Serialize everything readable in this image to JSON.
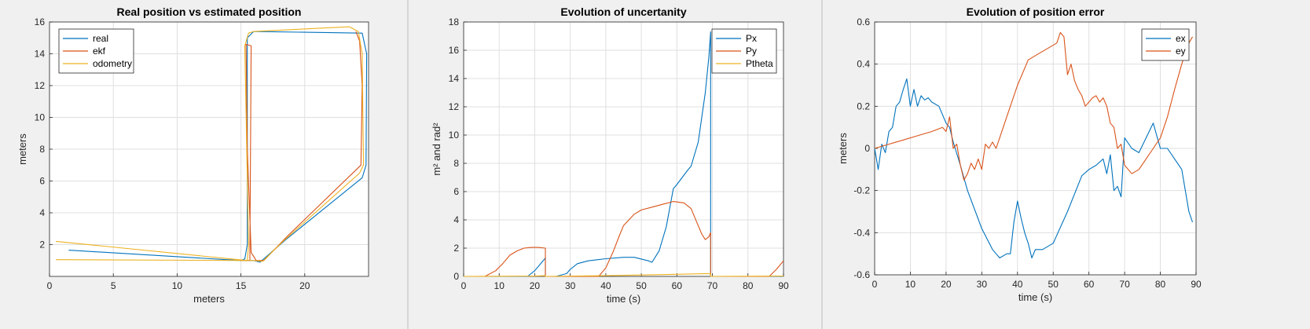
{
  "chart_data": [
    {
      "type": "line",
      "title": "Real position vs estimated position",
      "xlabel": "meters",
      "ylabel": "meters",
      "xlim": [
        0,
        25
      ],
      "ylim": [
        0,
        16
      ],
      "xticks": [
        0,
        5,
        10,
        15,
        20
      ],
      "yticks": [
        2,
        4,
        6,
        8,
        10,
        12,
        14,
        16
      ],
      "grid": true,
      "legend_position": "top-left",
      "series": [
        {
          "name": "real",
          "color": "#0072BD",
          "points": [
            [
              1.5,
              1.65
            ],
            [
              15.0,
              1.0
            ],
            [
              16.0,
              1.0
            ],
            [
              16.5,
              0.9
            ],
            [
              18.5,
              2.3
            ],
            [
              24.5,
              6.2
            ],
            [
              24.8,
              7.0
            ],
            [
              24.85,
              14.0
            ],
            [
              24.5,
              15.3
            ],
            [
              16.0,
              15.4
            ],
            [
              15.5,
              15.0
            ],
            [
              15.5,
              2.0
            ],
            [
              15.3,
              1.1
            ],
            [
              15.0,
              1.0
            ]
          ]
        },
        {
          "name": "ekf",
          "color": "#D95319",
          "points": [
            [
              15.0,
              1.0
            ],
            [
              15.7,
              1.0
            ],
            [
              15.7,
              1.6
            ],
            [
              15.8,
              14.5
            ],
            [
              15.4,
              14.6
            ],
            [
              15.5,
              8.0
            ],
            [
              15.8,
              1.5
            ],
            [
              16.2,
              1.0
            ],
            [
              16.8,
              1.0
            ],
            [
              18.6,
              2.5
            ],
            [
              24.4,
              7.0
            ],
            [
              24.5,
              12.0
            ],
            [
              24.3,
              14.8
            ],
            [
              24.0,
              15.4
            ]
          ]
        },
        {
          "name": "odometry",
          "color": "#EDB120",
          "points": [
            [
              0.5,
              2.2
            ],
            [
              14.8,
              1.05
            ],
            [
              15.5,
              1.0
            ],
            [
              15.6,
              2.0
            ],
            [
              15.3,
              14.5
            ],
            [
              15.6,
              15.3
            ],
            [
              16.0,
              15.4
            ],
            [
              23.5,
              15.7
            ],
            [
              24.2,
              15.4
            ],
            [
              24.5,
              14.0
            ],
            [
              24.6,
              7.0
            ],
            [
              24.3,
              6.5
            ],
            [
              18.3,
              2.2
            ],
            [
              16.7,
              0.95
            ],
            [
              16.0,
              1.0
            ],
            [
              0.5,
              1.05
            ]
          ]
        }
      ]
    },
    {
      "type": "line",
      "title": "Evolution of uncertanity",
      "xlabel": "time (s)",
      "ylabel": "m² and rad²",
      "xlim": [
        0,
        90
      ],
      "ylim": [
        0,
        18
      ],
      "xticks": [
        0,
        10,
        20,
        30,
        40,
        50,
        60,
        70,
        80,
        90
      ],
      "yticks": [
        0,
        2,
        4,
        6,
        8,
        10,
        12,
        14,
        16,
        18
      ],
      "grid": true,
      "legend_position": "top-right",
      "series": [
        {
          "name": "Px",
          "color": "#0072BD",
          "points": [
            [
              0,
              0
            ],
            [
              18,
              0
            ],
            [
              20,
              0.4
            ],
            [
              22,
              1.0
            ],
            [
              23,
              1.3
            ],
            [
              23,
              0
            ],
            [
              26,
              0
            ],
            [
              29,
              0.2
            ],
            [
              30,
              0.5
            ],
            [
              32,
              0.9
            ],
            [
              35,
              1.1
            ],
            [
              40,
              1.25
            ],
            [
              45,
              1.35
            ],
            [
              48,
              1.35
            ],
            [
              52,
              1.1
            ],
            [
              53,
              1.0
            ],
            [
              55,
              1.8
            ],
            [
              57,
              3.5
            ],
            [
              59,
              6.2
            ],
            [
              60,
              6.5
            ],
            [
              63,
              7.5
            ],
            [
              64,
              7.8
            ],
            [
              66,
              9.5
            ],
            [
              68,
              13
            ],
            [
              69,
              15.5
            ],
            [
              69.5,
              17.3
            ],
            [
              69.5,
              0
            ],
            [
              90,
              0
            ]
          ]
        },
        {
          "name": "Py",
          "color": "#D95319",
          "points": [
            [
              0,
              0
            ],
            [
              6,
              0
            ],
            [
              9,
              0.4
            ],
            [
              11,
              0.9
            ],
            [
              13,
              1.5
            ],
            [
              15,
              1.8
            ],
            [
              17,
              2.0
            ],
            [
              19,
              2.05
            ],
            [
              21,
              2.05
            ],
            [
              23,
              2.0
            ],
            [
              23,
              0
            ],
            [
              38,
              0
            ],
            [
              40,
              0.6
            ],
            [
              42,
              1.7
            ],
            [
              44,
              3.0
            ],
            [
              45,
              3.6
            ],
            [
              48,
              4.4
            ],
            [
              50,
              4.7
            ],
            [
              53,
              4.9
            ],
            [
              56,
              5.1
            ],
            [
              59,
              5.3
            ],
            [
              62,
              5.2
            ],
            [
              64,
              4.8
            ],
            [
              65,
              4.2
            ],
            [
              67,
              3.0
            ],
            [
              68,
              2.6
            ],
            [
              69,
              2.8
            ],
            [
              69.5,
              3.1
            ],
            [
              69.5,
              0
            ],
            [
              86,
              0
            ],
            [
              88,
              0.5
            ],
            [
              90,
              1.1
            ]
          ]
        },
        {
          "name": "Ptheta",
          "color": "#EDB120",
          "points": [
            [
              0,
              0
            ],
            [
              20,
              0.02
            ],
            [
              23,
              0.05
            ],
            [
              23,
              0
            ],
            [
              40,
              0.05
            ],
            [
              60,
              0.15
            ],
            [
              69.5,
              0.2
            ],
            [
              69.5,
              0
            ],
            [
              90,
              0.02
            ]
          ]
        }
      ]
    },
    {
      "type": "line",
      "title": "Evolution of position error",
      "xlabel": "time (s)",
      "ylabel": "meters",
      "xlim": [
        0,
        90
      ],
      "ylim": [
        -0.6,
        0.6
      ],
      "xticks": [
        0,
        10,
        20,
        30,
        40,
        50,
        60,
        70,
        80,
        90
      ],
      "yticks": [
        -0.6,
        -0.4,
        -0.2,
        0,
        0.2,
        0.4,
        0.6
      ],
      "ytick_labels": [
        "-0.6",
        "-0.4",
        "-0.2",
        "0",
        "0.2",
        "0.4",
        "0.6"
      ],
      "grid": true,
      "legend_position": "top-right",
      "series": [
        {
          "name": "ex",
          "color": "#0072BD",
          "points": [
            [
              0,
              0
            ],
            [
              0.5,
              -0.05
            ],
            [
              1,
              -0.1
            ],
            [
              2,
              0.02
            ],
            [
              3,
              -0.02
            ],
            [
              4,
              0.08
            ],
            [
              5,
              0.1
            ],
            [
              6,
              0.2
            ],
            [
              7,
              0.22
            ],
            [
              8,
              0.28
            ],
            [
              9,
              0.33
            ],
            [
              10,
              0.2
            ],
            [
              11,
              0.28
            ],
            [
              12,
              0.2
            ],
            [
              13,
              0.25
            ],
            [
              14,
              0.23
            ],
            [
              15,
              0.24
            ],
            [
              16,
              0.22
            ],
            [
              18,
              0.2
            ],
            [
              20,
              0.12
            ],
            [
              21,
              0.1
            ],
            [
              22,
              0.03
            ],
            [
              24,
              -0.08
            ],
            [
              26,
              -0.2
            ],
            [
              30,
              -0.38
            ],
            [
              33,
              -0.48
            ],
            [
              35,
              -0.52
            ],
            [
              37,
              -0.5
            ],
            [
              38,
              -0.5
            ],
            [
              39,
              -0.35
            ],
            [
              40,
              -0.25
            ],
            [
              41,
              -0.33
            ],
            [
              42,
              -0.4
            ],
            [
              43,
              -0.45
            ],
            [
              44,
              -0.52
            ],
            [
              45,
              -0.48
            ],
            [
              47,
              -0.48
            ],
            [
              50,
              -0.45
            ],
            [
              54,
              -0.3
            ],
            [
              58,
              -0.13
            ],
            [
              60,
              -0.1
            ],
            [
              62,
              -0.08
            ],
            [
              64,
              -0.05
            ],
            [
              65,
              -0.12
            ],
            [
              66,
              -0.03
            ],
            [
              67,
              -0.2
            ],
            [
              68,
              -0.18
            ],
            [
              69,
              -0.23
            ],
            [
              70,
              0.05
            ],
            [
              72,
              0.0
            ],
            [
              74,
              -0.02
            ],
            [
              76,
              0.05
            ],
            [
              78,
              0.12
            ],
            [
              80,
              0.0
            ],
            [
              82,
              0.0
            ],
            [
              84,
              -0.05
            ],
            [
              86,
              -0.1
            ],
            [
              88,
              -0.3
            ],
            [
              89,
              -0.35
            ]
          ]
        },
        {
          "name": "ey",
          "color": "#D95319",
          "points": [
            [
              0,
              0
            ],
            [
              4,
              0.02
            ],
            [
              8,
              0.04
            ],
            [
              12,
              0.06
            ],
            [
              16,
              0.08
            ],
            [
              19,
              0.1
            ],
            [
              20,
              0.08
            ],
            [
              21,
              0.15
            ],
            [
              22,
              0.0
            ],
            [
              23,
              0.02
            ],
            [
              24,
              -0.08
            ],
            [
              25,
              -0.15
            ],
            [
              26,
              -0.12
            ],
            [
              27,
              -0.07
            ],
            [
              28,
              -0.1
            ],
            [
              29,
              -0.05
            ],
            [
              30,
              -0.1
            ],
            [
              31,
              0.02
            ],
            [
              32,
              0.0
            ],
            [
              33,
              0.03
            ],
            [
              34,
              0.0
            ],
            [
              35,
              0.05
            ],
            [
              37,
              0.15
            ],
            [
              40,
              0.3
            ],
            [
              43,
              0.42
            ],
            [
              46,
              0.45
            ],
            [
              49,
              0.48
            ],
            [
              51,
              0.5
            ],
            [
              52,
              0.55
            ],
            [
              53,
              0.53
            ],
            [
              54,
              0.35
            ],
            [
              55,
              0.4
            ],
            [
              56,
              0.32
            ],
            [
              57,
              0.28
            ],
            [
              58,
              0.25
            ],
            [
              59,
              0.2
            ],
            [
              60,
              0.22
            ],
            [
              61,
              0.24
            ],
            [
              62,
              0.25
            ],
            [
              63,
              0.22
            ],
            [
              64,
              0.24
            ],
            [
              65,
              0.2
            ],
            [
              66,
              0.12
            ],
            [
              67,
              0.1
            ],
            [
              68,
              0.0
            ],
            [
              69,
              0.02
            ],
            [
              70,
              -0.08
            ],
            [
              71,
              -0.1
            ],
            [
              72,
              -0.12
            ],
            [
              74,
              -0.1
            ],
            [
              76,
              -0.05
            ],
            [
              78,
              0.0
            ],
            [
              80,
              0.05
            ],
            [
              82,
              0.15
            ],
            [
              84,
              0.28
            ],
            [
              86,
              0.4
            ],
            [
              88,
              0.5
            ],
            [
              89,
              0.53
            ]
          ]
        }
      ]
    }
  ]
}
